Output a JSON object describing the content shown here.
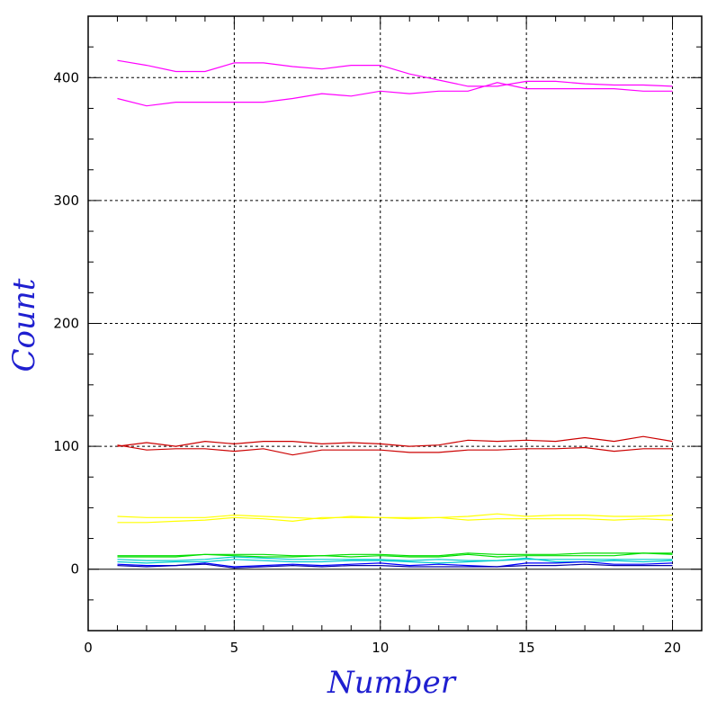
{
  "chart_data": {
    "type": "line",
    "title": "",
    "xlabel": "Number",
    "ylabel": "Count",
    "xlim": [
      0,
      21
    ],
    "ylim": [
      -50,
      450
    ],
    "x_ticks": [
      0,
      5,
      10,
      15,
      20
    ],
    "y_ticks": [
      0,
      100,
      200,
      300,
      400
    ],
    "x_tick_labels": [
      "0",
      "5",
      "10",
      "15",
      "20"
    ],
    "y_tick_labels": [
      "0",
      "100",
      "200",
      "300",
      "400"
    ],
    "grid": true,
    "zero_line": true,
    "x": [
      1,
      2,
      3,
      4,
      5,
      6,
      7,
      8,
      9,
      10,
      11,
      12,
      13,
      14,
      15,
      16,
      17,
      18,
      19,
      20
    ],
    "series": [
      {
        "color": "#ff00ff",
        "values": [
          414,
          410,
          405,
          405,
          412,
          412,
          409,
          407,
          410,
          410,
          403,
          398,
          393,
          393,
          397,
          397,
          395,
          394,
          394,
          393
        ]
      },
      {
        "color": "#ff00ff",
        "values": [
          383,
          377,
          380,
          380,
          380,
          380,
          383,
          387,
          385,
          389,
          387,
          389,
          389,
          396,
          391,
          391,
          391,
          391,
          389,
          389
        ]
      },
      {
        "color": "#cc0000",
        "values": [
          100,
          103,
          100,
          104,
          102,
          104,
          104,
          102,
          103,
          102,
          100,
          101,
          105,
          104,
          105,
          104,
          107,
          104,
          108,
          104
        ]
      },
      {
        "color": "#cc0000",
        "values": [
          101,
          97,
          98,
          98,
          96,
          98,
          93,
          97,
          97,
          97,
          95,
          95,
          97,
          97,
          98,
          98,
          99,
          96,
          98,
          98
        ]
      },
      {
        "color": "#ffff00",
        "values": [
          43,
          42,
          42,
          42,
          44,
          43,
          42,
          41,
          43,
          42,
          42,
          42,
          43,
          45,
          43,
          44,
          44,
          43,
          43,
          44
        ]
      },
      {
        "color": "#ffff00",
        "values": [
          38,
          38,
          39,
          40,
          42,
          41,
          39,
          42,
          42,
          42,
          41,
          42,
          40,
          41,
          41,
          41,
          41,
          40,
          41,
          40
        ]
      },
      {
        "color": "#00dd00",
        "values": [
          11,
          11,
          11,
          12,
          12,
          12,
          11,
          11,
          12,
          12,
          11,
          11,
          13,
          12,
          12,
          12,
          13,
          13,
          13,
          13
        ]
      },
      {
        "color": "#00dd00",
        "values": [
          10,
          10,
          10,
          12,
          11,
          10,
          10,
          11,
          10,
          11,
          10,
          10,
          12,
          10,
          11,
          11,
          11,
          11,
          13,
          12
        ]
      },
      {
        "color": "#00cccc",
        "values": [
          8,
          7,
          7,
          8,
          10,
          9,
          8,
          8,
          8,
          8,
          7,
          8,
          7,
          7,
          8,
          8,
          8,
          8,
          8,
          8
        ]
      },
      {
        "color": "#00cccc",
        "values": [
          6,
          5,
          6,
          6,
          8,
          7,
          6,
          6,
          7,
          7,
          6,
          5,
          6,
          7,
          9,
          6,
          6,
          7,
          6,
          7
        ]
      },
      {
        "color": "#0000ff",
        "values": [
          4,
          3,
          3,
          5,
          2,
          3,
          4,
          3,
          4,
          5,
          3,
          4,
          3,
          2,
          5,
          5,
          6,
          4,
          4,
          5
        ]
      },
      {
        "color": "#0000aa",
        "values": [
          3,
          2,
          3,
          4,
          1,
          2,
          3,
          2,
          3,
          3,
          2,
          2,
          2,
          2,
          3,
          3,
          4,
          3,
          3,
          3
        ]
      }
    ]
  }
}
